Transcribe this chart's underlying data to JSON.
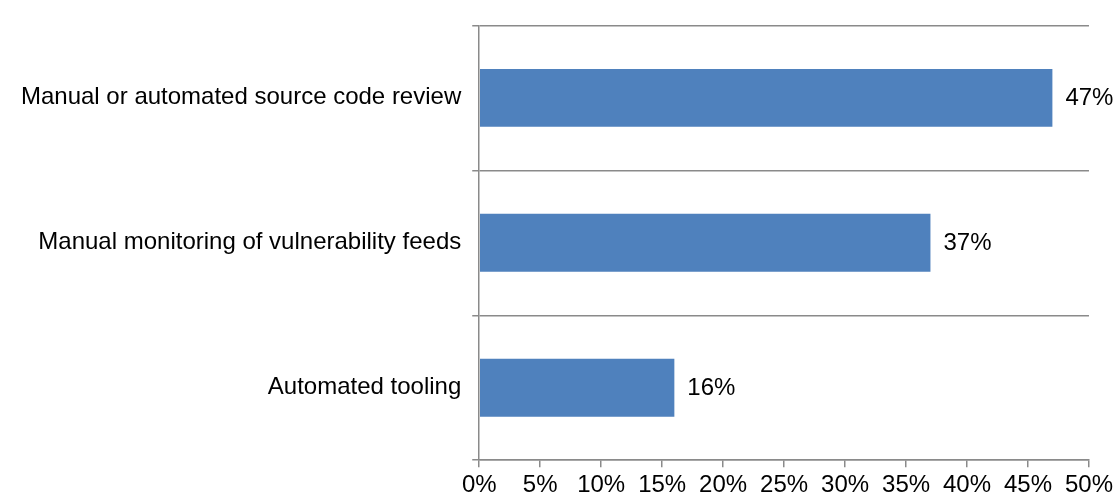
{
  "chart_data": {
    "type": "bar",
    "orientation": "horizontal",
    "categories": [
      "Manual or automated source code review",
      "Manual monitoring of vulnerability feeds",
      "Automated tooling"
    ],
    "values": [
      47,
      37,
      16
    ],
    "value_labels": [
      "47%",
      "37%",
      "16%"
    ],
    "color": "#4f81bd",
    "xlim": [
      0,
      50
    ],
    "xticks": [
      {
        "value": 0,
        "label": "0%"
      },
      {
        "value": 5,
        "label": "5%"
      },
      {
        "value": 10,
        "label": "10%"
      },
      {
        "value": 15,
        "label": "15%"
      },
      {
        "value": 20,
        "label": "20%"
      },
      {
        "value": 25,
        "label": "25%"
      },
      {
        "value": 30,
        "label": "30%"
      },
      {
        "value": 35,
        "label": "35%"
      },
      {
        "value": 40,
        "label": "40%"
      },
      {
        "value": 45,
        "label": "45%"
      },
      {
        "value": 50,
        "label": "50%"
      }
    ],
    "grid": "y"
  }
}
